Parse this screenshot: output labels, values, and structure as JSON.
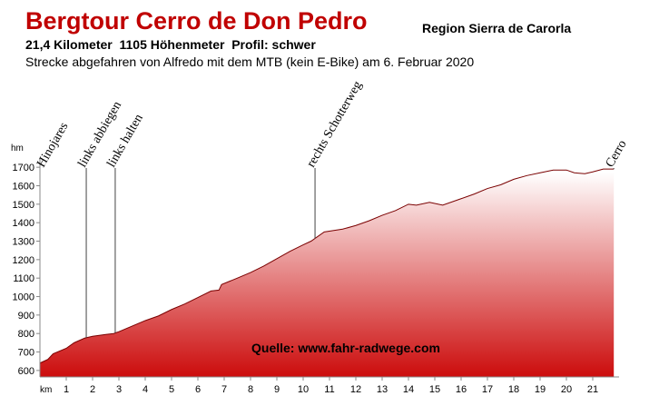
{
  "chart_data": {
    "type": "area",
    "title": "Bergtour Cerro de Don Pedro",
    "region": "Region Sierra de Carorla",
    "subtitle": "21,4 Kilometer  1105 Höhenmeter  Profil: schwer",
    "description": "Strecke abgefahren von Alfredo mit dem MTB (kein E-Bike) am 6. Februar 2020",
    "source": "Quelle: www.fahr-radwege.com",
    "x_label": "km",
    "y_label": "hm",
    "x": [
      0,
      0.3,
      0.5,
      1.0,
      1.3,
      1.7,
      2.0,
      2.5,
      2.8,
      3.0,
      3.5,
      4.0,
      4.5,
      5.0,
      5.5,
      6.0,
      6.5,
      6.8,
      6.9,
      7.5,
      8.0,
      8.5,
      9.0,
      9.5,
      10.0,
      10.3,
      10.8,
      11.5,
      12.0,
      12.5,
      13.0,
      13.5,
      14.0,
      14.3,
      14.8,
      15.3,
      16.0,
      16.5,
      17.0,
      17.5,
      18.0,
      18.5,
      19.0,
      19.5,
      20.0,
      20.3,
      20.7,
      21.0,
      21.4,
      21.8
    ],
    "values": [
      640,
      660,
      690,
      720,
      750,
      775,
      785,
      795,
      800,
      810,
      840,
      870,
      895,
      930,
      960,
      995,
      1030,
      1035,
      1065,
      1100,
      1130,
      1165,
      1205,
      1245,
      1280,
      1300,
      1350,
      1365,
      1385,
      1410,
      1440,
      1465,
      1500,
      1495,
      1510,
      1495,
      1530,
      1555,
      1585,
      1605,
      1635,
      1655,
      1670,
      1685,
      1685,
      1670,
      1665,
      1675,
      1690,
      1690
    ],
    "annotations": [
      {
        "label": "Hinojares",
        "x": 0.2,
        "line": false
      },
      {
        "label": "links abbiegen",
        "x": 1.76,
        "line": true
      },
      {
        "label": "links halten",
        "x": 2.86,
        "line": true
      },
      {
        "label": "rechts Schotterweg",
        "x": 10.45,
        "line": true
      },
      {
        "label": "Cerro",
        "x": 21.8,
        "line": true
      }
    ],
    "xlim": [
      0,
      22
    ],
    "ylim": [
      565,
      1745
    ],
    "xticks": [
      1,
      2,
      3,
      4,
      5,
      6,
      7,
      8,
      9,
      10,
      11,
      12,
      13,
      14,
      15,
      16,
      17,
      18,
      19,
      20,
      21
    ],
    "yticks": [
      600,
      700,
      800,
      900,
      1000,
      1100,
      1200,
      1300,
      1400,
      1500,
      1600,
      1700
    ],
    "color_bottom": "#cc0c0c",
    "color_top": "#ffffff",
    "line_color": "#444444"
  }
}
